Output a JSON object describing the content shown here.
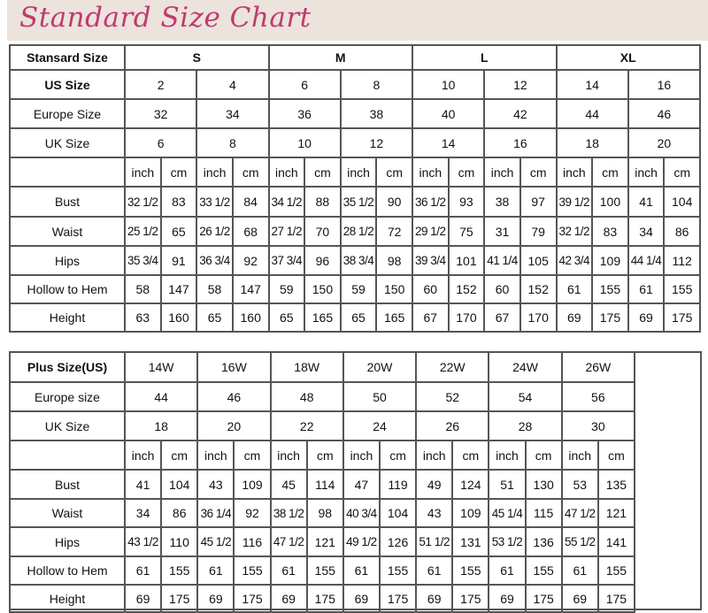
{
  "title": "Standard Size Chart",
  "colors": {
    "title": "#c03a70",
    "banner": "#ebe3dc",
    "grid": "#555555"
  },
  "standard": {
    "header_label": "Stansard Size",
    "groups": [
      {
        "label": "S",
        "span": 4
      },
      {
        "label": "M",
        "span": 4
      },
      {
        "label": "L",
        "span": 4
      },
      {
        "label": "XL",
        "span": 4
      }
    ],
    "size_rows": [
      {
        "label": "US Size",
        "bold": true,
        "values": [
          "2",
          "4",
          "6",
          "8",
          "10",
          "12",
          "14",
          "16"
        ]
      },
      {
        "label": "Europe Size",
        "values": [
          "32",
          "34",
          "36",
          "38",
          "40",
          "42",
          "44",
          "46"
        ]
      },
      {
        "label": "UK Size",
        "values": [
          "6",
          "8",
          "10",
          "12",
          "14",
          "16",
          "18",
          "20"
        ]
      }
    ],
    "units": [
      "inch",
      "cm"
    ],
    "measure_rows": [
      {
        "label": "Bust",
        "values": [
          "32 1/2",
          "83",
          "33 1/2",
          "84",
          "34 1/2",
          "88",
          "35 1/2",
          "90",
          "36 1/2",
          "93",
          "38",
          "97",
          "39 1/2",
          "100",
          "41",
          "104"
        ]
      },
      {
        "label": "Waist",
        "values": [
          "25 1/2",
          "65",
          "26 1/2",
          "68",
          "27 1/2",
          "70",
          "28 1/2",
          "72",
          "29 1/2",
          "75",
          "31",
          "79",
          "32 1/2",
          "83",
          "34",
          "86"
        ]
      },
      {
        "label": "Hips",
        "values": [
          "35 3/4",
          "91",
          "36 3/4",
          "92",
          "37 3/4",
          "96",
          "38 3/4",
          "98",
          "39 3/4",
          "101",
          "41 1/4",
          "105",
          "42 3/4",
          "109",
          "44 1/4",
          "112"
        ]
      },
      {
        "label": "Hollow to Hem",
        "values": [
          "58",
          "147",
          "58",
          "147",
          "59",
          "150",
          "59",
          "150",
          "60",
          "152",
          "60",
          "152",
          "61",
          "155",
          "61",
          "155"
        ]
      },
      {
        "label": "Height",
        "values": [
          "63",
          "160",
          "65",
          "160",
          "65",
          "165",
          "65",
          "165",
          "67",
          "170",
          "67",
          "170",
          "69",
          "175",
          "69",
          "175"
        ]
      }
    ]
  },
  "plus": {
    "header_label": "Plus Size(US)",
    "sizes": [
      "14W",
      "16W",
      "18W",
      "20W",
      "22W",
      "24W",
      "26W"
    ],
    "size_rows": [
      {
        "label": "Europe size",
        "values": [
          "44",
          "46",
          "48",
          "50",
          "52",
          "54",
          "56"
        ]
      },
      {
        "label": "UK Size",
        "values": [
          "18",
          "20",
          "22",
          "24",
          "26",
          "28",
          "30"
        ]
      }
    ],
    "units": [
      "inch",
      "cm"
    ],
    "measure_rows": [
      {
        "label": "Bust",
        "values": [
          "41",
          "104",
          "43",
          "109",
          "45",
          "114",
          "47",
          "119",
          "49",
          "124",
          "51",
          "130",
          "53",
          "135"
        ]
      },
      {
        "label": "Waist",
        "values": [
          "34",
          "86",
          "36 1/4",
          "92",
          "38 1/2",
          "98",
          "40 3/4",
          "104",
          "43",
          "109",
          "45 1/4",
          "115",
          "47 1/2",
          "121"
        ]
      },
      {
        "label": "Hips",
        "values": [
          "43 1/2",
          "110",
          "45 1/2",
          "116",
          "47 1/2",
          "121",
          "49 1/2",
          "126",
          "51 1/2",
          "131",
          "53 1/2",
          "136",
          "55 1/2",
          "141"
        ]
      },
      {
        "label": "Hollow to Hem",
        "values": [
          "61",
          "155",
          "61",
          "155",
          "61",
          "155",
          "61",
          "155",
          "61",
          "155",
          "61",
          "155",
          "61",
          "155"
        ]
      },
      {
        "label": "Height",
        "values": [
          "69",
          "175",
          "69",
          "175",
          "69",
          "175",
          "69",
          "175",
          "69",
          "175",
          "69",
          "175",
          "69",
          "175"
        ]
      }
    ]
  }
}
